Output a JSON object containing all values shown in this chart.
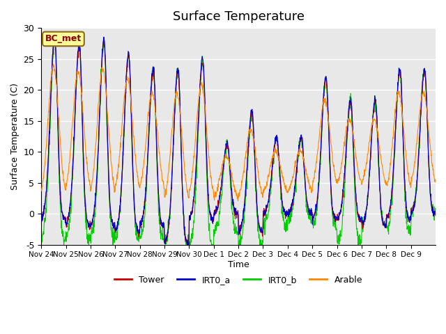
{
  "title": "Surface Temperature",
  "xlabel": "Time",
  "ylabel": "Surface Temperature (C)",
  "ylim": [
    -5,
    30
  ],
  "background_color": "#ffffff",
  "plot_bg_color": "#e8e8e8",
  "grid_color": "#ffffff",
  "label_text": "BC_met",
  "label_fg": "#8B0000",
  "label_bg": "#FFFF99",
  "colors": {
    "Tower": "#cc0000",
    "IRT0_a": "#0000cc",
    "IRT0_b": "#00cc00",
    "Arable": "#ff8800"
  },
  "xtick_labels": [
    "Nov 24",
    "Nov 25",
    "Nov 26",
    "Nov 27",
    "Nov 28",
    "Nov 29",
    "Nov 30",
    "Dec 1",
    "Dec 2",
    "Dec 3",
    "Dec 4",
    "Dec 5",
    "Dec 6",
    "Dec 7",
    "Dec 8",
    "Dec 9"
  ],
  "ytick_labels": [
    -5,
    0,
    5,
    10,
    15,
    20,
    25,
    30
  ],
  "day_peaks": [
    28,
    27,
    27.5,
    25.5,
    23,
    23,
    24.5,
    11,
    16,
    12,
    12,
    21.5,
    18,
    18,
    23,
    23
  ],
  "day_troughs_rb": [
    -1,
    -2,
    -2,
    -3,
    -2,
    -5,
    -1,
    0,
    -3,
    0,
    0,
    -1,
    -1,
    -2,
    -1,
    0
  ],
  "day_troughs_g": [
    -4,
    -4,
    -4,
    -4,
    -4,
    -5,
    -5,
    -3,
    -5,
    -2,
    -1,
    -2,
    -5,
    -2,
    -3,
    0
  ],
  "arable_night": [
    2,
    3,
    2,
    3,
    3,
    1,
    2,
    2,
    2,
    3,
    3,
    4,
    4,
    4,
    3,
    4
  ]
}
